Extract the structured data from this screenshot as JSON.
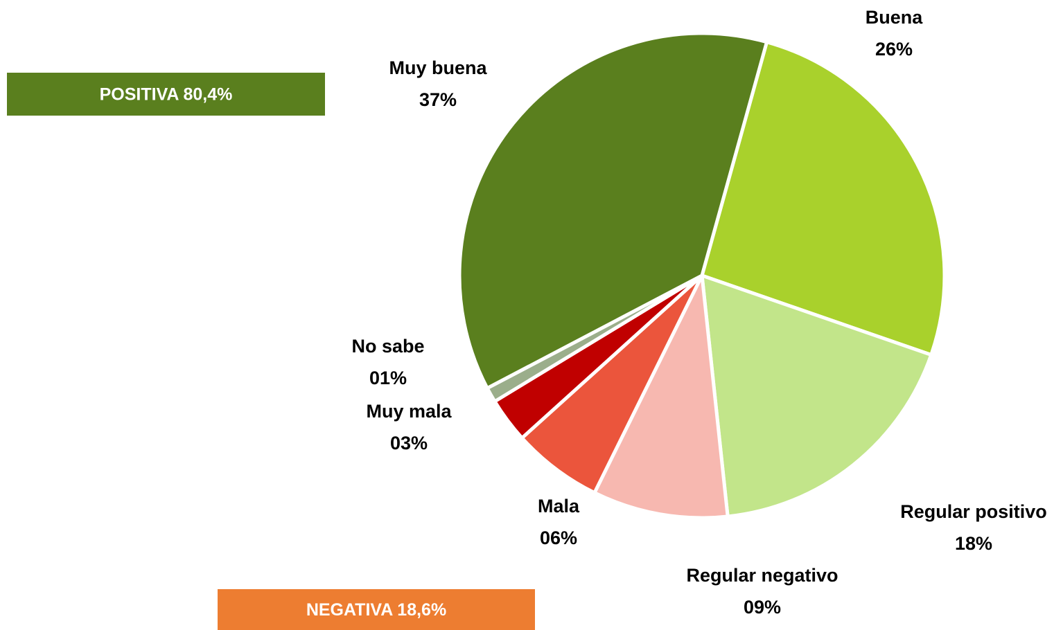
{
  "chart_data": {
    "type": "pie",
    "categories": [
      "Buena",
      "Regular positivo",
      "Regular negativo",
      "Mala",
      "Muy mala",
      "No sabe",
      "Muy buena"
    ],
    "values": [
      26,
      18,
      9,
      6,
      3,
      1,
      37
    ],
    "value_labels": [
      "26%",
      "18%",
      "09%",
      "06%",
      "03%",
      "01%",
      "37%"
    ],
    "colors": [
      "#a9d12c",
      "#c2e58a",
      "#f7b8b0",
      "#eb553c",
      "#c00000",
      "#9bae8b",
      "#5a7f1e"
    ],
    "annotations": [
      {
        "text": "POSITIVA 80,4%",
        "color": "#5a7f1e"
      },
      {
        "text": "NEGATIVA 18,6%",
        "color": "#ed7d31"
      }
    ]
  }
}
